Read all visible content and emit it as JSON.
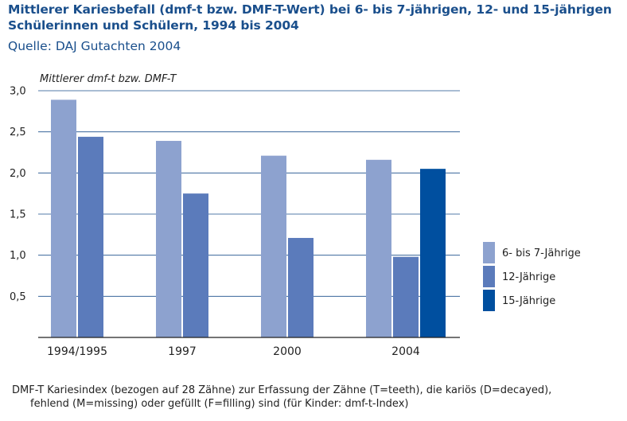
{
  "title": "Mittlerer Kariesbefall (dmf-t bzw. DMF-T-Wert) bei 6- bis 7-jährigen, 12- und 15-jährigen Schülerinnen und Schülern, 1994 bis 2004",
  "source": "Quelle: DAJ Gutachten 2004",
  "footnote_line1": "DMF-T Kariesindex (bezogen auf 28 Zähne) zur Erfassung der Zähne (T=teeth), die kariös (D=decayed),",
  "footnote_line2": "fehlend (M=missing) oder gefüllt (F=filling) sind (für Kinder: dmf-t-Index)",
  "chart_data": {
    "type": "bar",
    "title": "Mittlerer Kariesbefall (dmf-t bzw. DMF-T-Wert) bei 6- bis 7-jährigen, 12- und 15-jährigen Schülerinnen und Schülern, 1994 bis 2004",
    "ylabel": "Mittlerer dmf-t bzw. DMF-T",
    "xlabel": "",
    "categories": [
      "1994/1995",
      "1997",
      "2000",
      "2004"
    ],
    "ylim": [
      0,
      3.0
    ],
    "yticks": [
      0.5,
      1.0,
      1.5,
      2.0,
      2.5,
      3.0
    ],
    "ytick_labels": [
      "0,5",
      "1,0",
      "1,5",
      "2,0",
      "2,5",
      "3,0"
    ],
    "grid": true,
    "legend_position": "right",
    "series": [
      {
        "name": "6- bis 7-Jährige",
        "color": "#8da2cf",
        "values": [
          2.89,
          2.39,
          2.21,
          2.16
        ]
      },
      {
        "name": "12-Jährige",
        "color": "#5b7bbb",
        "values": [
          2.44,
          1.75,
          1.21,
          0.98
        ]
      },
      {
        "name": "15-Jährige",
        "color": "#004f9f",
        "values": [
          null,
          null,
          null,
          2.05
        ]
      }
    ]
  }
}
